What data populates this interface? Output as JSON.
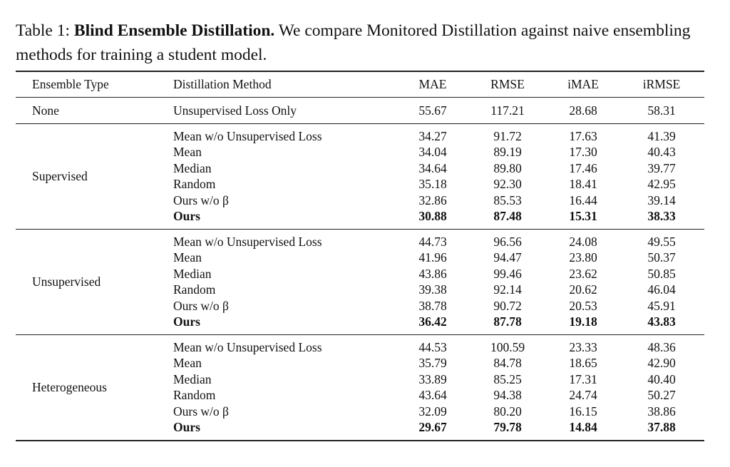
{
  "caption": {
    "label": "Table 1:",
    "title": "Blind Ensemble Distillation.",
    "text": "We compare Monitored Distillation against naive ensembling methods for training a student model."
  },
  "headers": [
    "Ensemble Type",
    "Distillation Method",
    "MAE",
    "RMSE",
    "iMAE",
    "iRMSE"
  ],
  "groups": [
    {
      "type": "None",
      "rows": [
        {
          "method": "Unsupervised Loss Only",
          "values": [
            "55.67",
            "117.21",
            "28.68",
            "58.31"
          ],
          "bold": false
        }
      ]
    },
    {
      "type": "Supervised",
      "rows": [
        {
          "method": "Mean w/o Unsupervised Loss",
          "values": [
            "34.27",
            "91.72",
            "17.63",
            "41.39"
          ],
          "bold": false
        },
        {
          "method": "Mean",
          "values": [
            "34.04",
            "89.19",
            "17.30",
            "40.43"
          ],
          "bold": false
        },
        {
          "method": "Median",
          "values": [
            "34.64",
            "89.80",
            "17.46",
            "39.77"
          ],
          "bold": false
        },
        {
          "method": "Random",
          "values": [
            "35.18",
            "92.30",
            "18.41",
            "42.95"
          ],
          "bold": false
        },
        {
          "method": "Ours w/o β",
          "values": [
            "32.86",
            "85.53",
            "16.44",
            "39.14"
          ],
          "bold": false
        },
        {
          "method": "Ours",
          "values": [
            "30.88",
            "87.48",
            "15.31",
            "38.33"
          ],
          "bold": true
        }
      ]
    },
    {
      "type": "Unsupervised",
      "rows": [
        {
          "method": "Mean w/o Unsupervised Loss",
          "values": [
            "44.73",
            "96.56",
            "24.08",
            "49.55"
          ],
          "bold": false
        },
        {
          "method": "Mean",
          "values": [
            "41.96",
            "94.47",
            "23.80",
            "50.37"
          ],
          "bold": false
        },
        {
          "method": "Median",
          "values": [
            "43.86",
            "99.46",
            "23.62",
            "50.85"
          ],
          "bold": false
        },
        {
          "method": "Random",
          "values": [
            "39.38",
            "92.14",
            "20.62",
            "46.04"
          ],
          "bold": false
        },
        {
          "method": "Ours w/o β",
          "values": [
            "38.78",
            "90.72",
            "20.53",
            "45.91"
          ],
          "bold": false
        },
        {
          "method": "Ours",
          "values": [
            "36.42",
            "87.78",
            "19.18",
            "43.83"
          ],
          "bold": true
        }
      ]
    },
    {
      "type": "Heterogeneous",
      "rows": [
        {
          "method": "Mean w/o Unsupervised Loss",
          "values": [
            "44.53",
            "100.59",
            "23.33",
            "48.36"
          ],
          "bold": false
        },
        {
          "method": "Mean",
          "values": [
            "35.79",
            "84.78",
            "18.65",
            "42.90"
          ],
          "bold": false
        },
        {
          "method": "Median",
          "values": [
            "33.89",
            "85.25",
            "17.31",
            "40.40"
          ],
          "bold": false
        },
        {
          "method": "Random",
          "values": [
            "43.64",
            "94.38",
            "24.74",
            "50.27"
          ],
          "bold": false
        },
        {
          "method": "Ours w/o β",
          "values": [
            "32.09",
            "80.20",
            "16.15",
            "38.86"
          ],
          "bold": false
        },
        {
          "method": "Ours",
          "values": [
            "29.67",
            "79.78",
            "14.84",
            "37.88"
          ],
          "bold": true
        }
      ]
    }
  ]
}
